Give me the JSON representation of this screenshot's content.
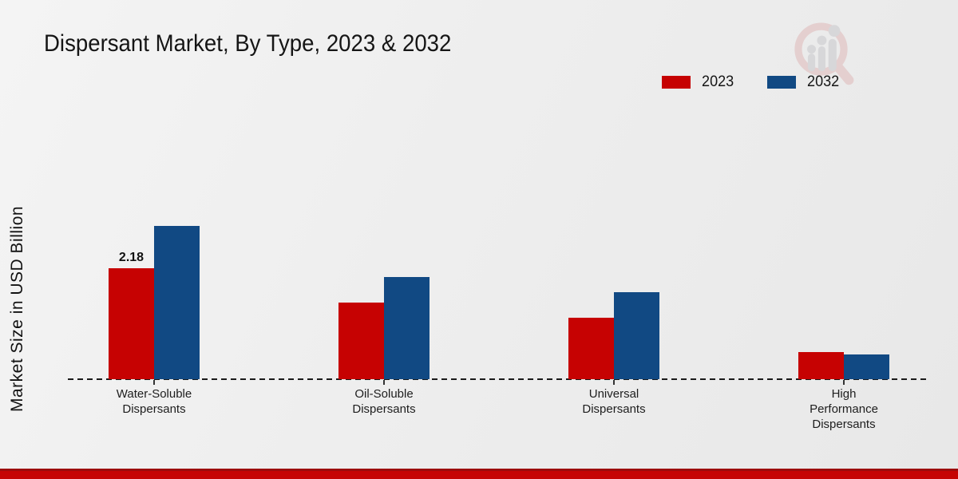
{
  "page_title": "Dispersant Market, By Type, 2023 & 2032",
  "watermark": "market-research-magnifier-logo",
  "colors": {
    "series_2023": "#c60202",
    "series_2032": "#114983",
    "footer_bar": "#c60404",
    "footer_bar_edge": "#9c0c0c",
    "axis_line": "#1a1a1a"
  },
  "chart_data": {
    "type": "bar",
    "title": "Dispersant Market, By Type, 2023 & 2032",
    "ylabel": "Market Size in USD Billion",
    "xlabel": "",
    "categories": [
      "Water-Soluble Dispersants",
      "Oil-Soluble Dispersants",
      "Universal Dispersants",
      "High Performance Dispersants"
    ],
    "category_label_lines": [
      [
        "Water-Soluble",
        "Dispersants"
      ],
      [
        "Oil-Soluble",
        "Dispersants"
      ],
      [
        "Universal",
        "Dispersants"
      ],
      [
        "High",
        "Performance",
        "Dispersants"
      ]
    ],
    "series": [
      {
        "name": "2023",
        "color": "#c60202",
        "values": [
          2.18,
          1.51,
          1.21,
          0.53
        ]
      },
      {
        "name": "2032",
        "color": "#114983",
        "values": [
          3.01,
          2.01,
          1.71,
          0.49
        ]
      }
    ],
    "value_labels": [
      {
        "series": 0,
        "category": 0,
        "text": "2.18"
      }
    ],
    "ylim": [
      0,
      3.5
    ],
    "grid": false,
    "baseline_style": "dashed",
    "legend_position": "top-right"
  }
}
